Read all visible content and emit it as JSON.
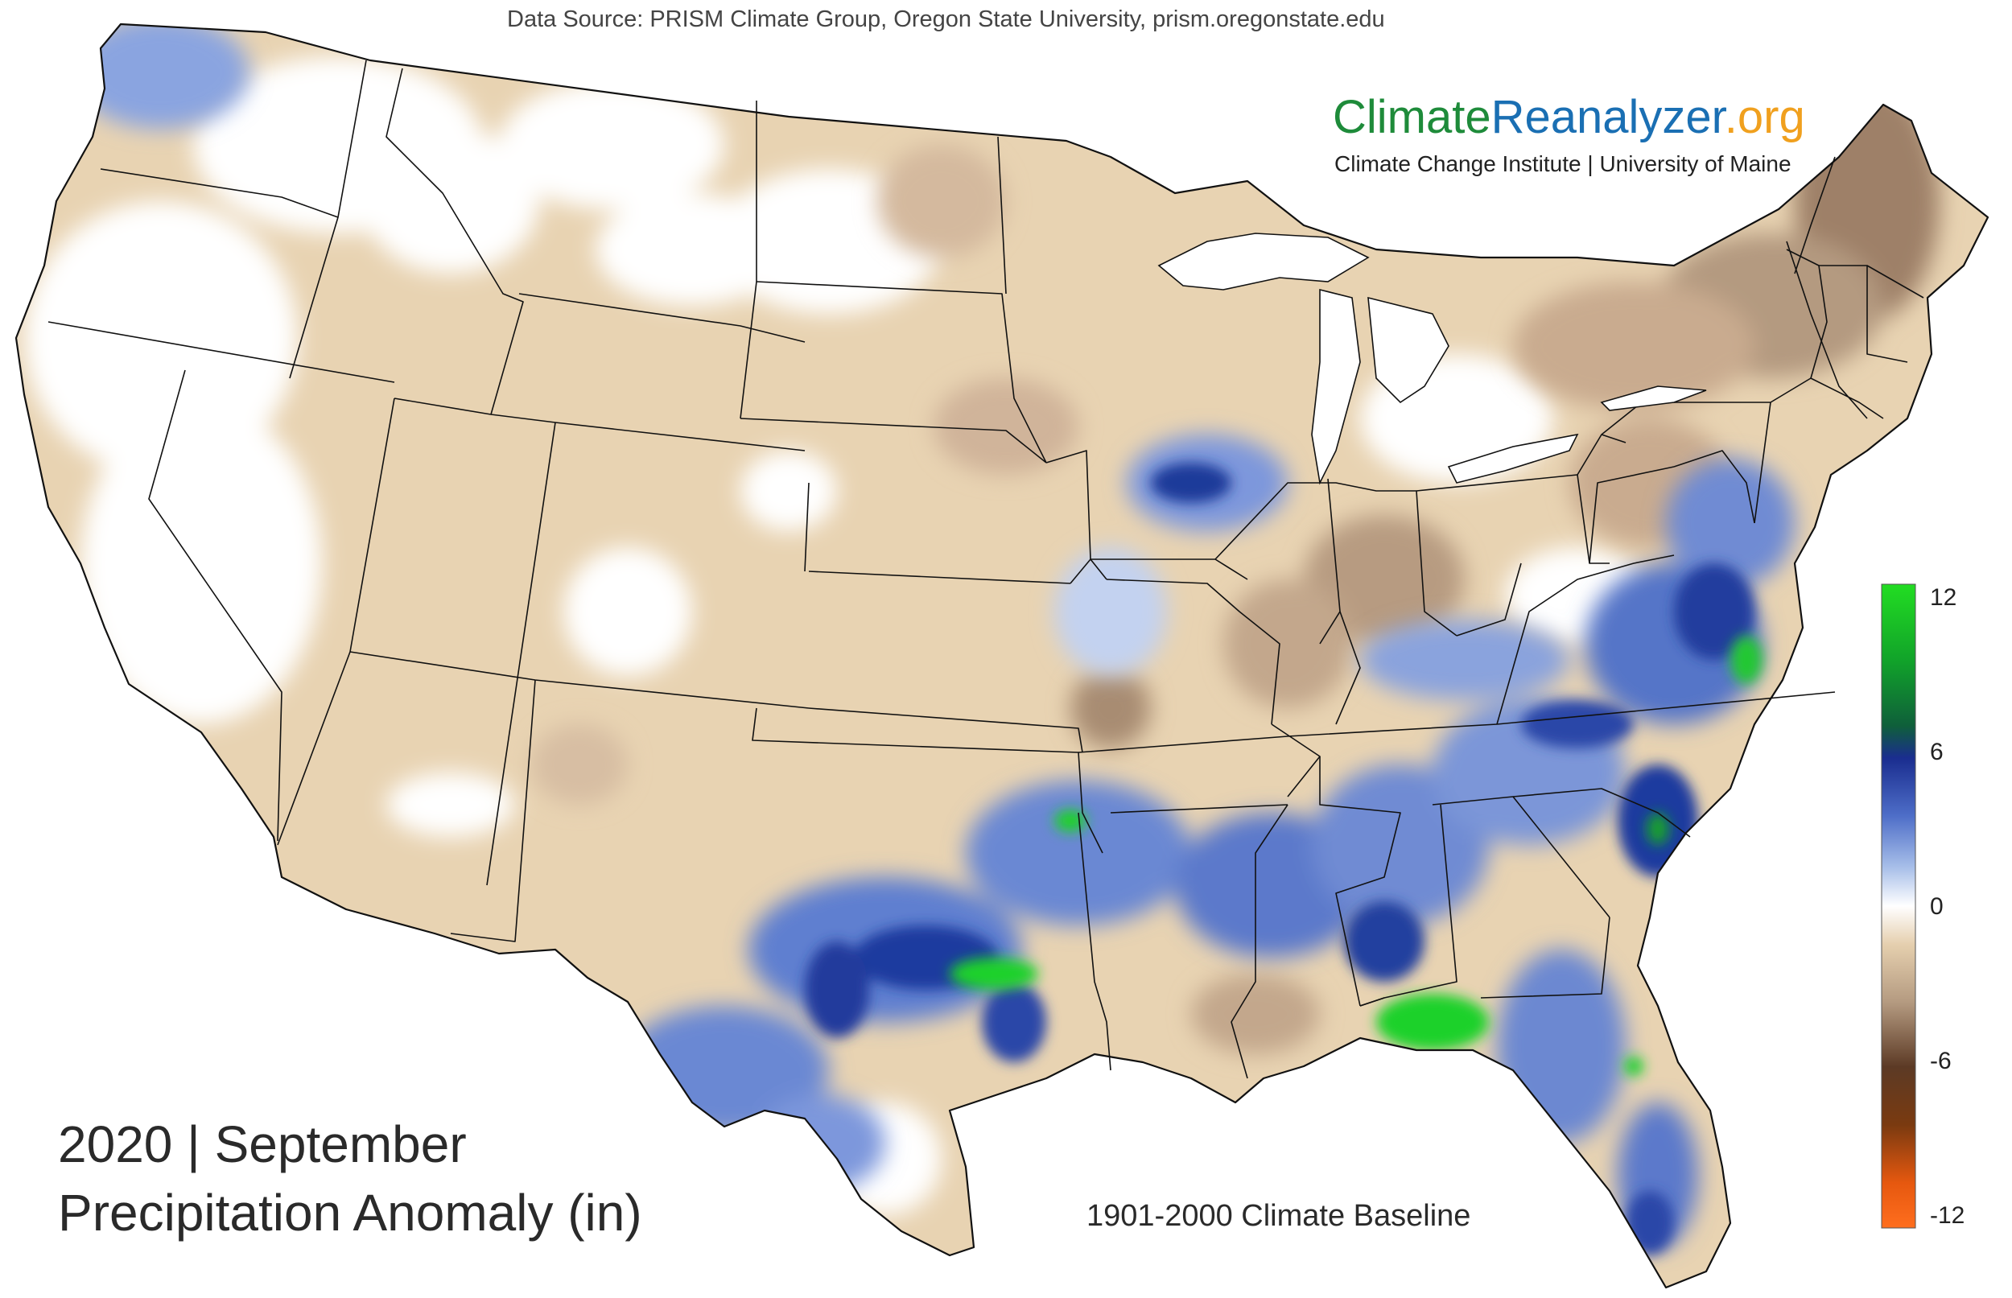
{
  "header": {
    "source": "Data Source: PRISM Climate Group, Oregon State University, prism.oregonstate.edu"
  },
  "brand": {
    "part1": "Climate",
    "part2": "Reanalyzer",
    "part3": ".org",
    "subtitle": "Climate Change Institute | University of Maine"
  },
  "title": {
    "line1": "2020 | September",
    "line2": "Precipitation Anomaly (in)"
  },
  "baseline": "1901-2000 Climate Baseline",
  "legend": {
    "ticks": [
      "12",
      "6",
      "0",
      "-6",
      "-12"
    ],
    "colors": {
      "p12": "#22dd22",
      "p9": "#11802a",
      "p6": "#1a2d8f",
      "p3": "#7f9fde",
      "zero": "#ffffff",
      "n2": "#e5cfae",
      "n4": "#b49a80",
      "n6": "#5c3a25",
      "n9": "#8c3d10",
      "n12": "#ff6414"
    }
  },
  "map": {
    "region": "Contiguous United States",
    "land_default": "#e8d3b2",
    "neutral": "#ffffff",
    "dry": "#c9a98d",
    "wet": "#6b86d4",
    "very_wet": "#1d3a9f",
    "extreme_wet": "#1fd12a",
    "border": "#111111"
  }
}
